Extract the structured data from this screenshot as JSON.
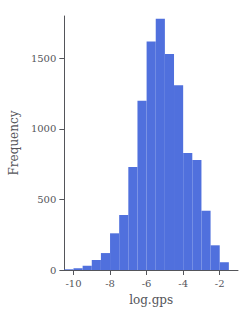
{
  "chart_data": {
    "type": "histogram",
    "xlabel": "log.gps",
    "ylabel": "Frequency",
    "bins": [
      -10.5,
      -10.0,
      -9.5,
      -9.0,
      -8.5,
      -8.0,
      -7.5,
      -7.0,
      -6.5,
      -6.0,
      -5.5,
      -5.0,
      -4.5,
      -4.0,
      -3.5,
      -3.0,
      -2.5,
      -2.0,
      -1.5
    ],
    "values": [
      5,
      12,
      30,
      70,
      120,
      260,
      390,
      730,
      1200,
      1620,
      1780,
      1530,
      1310,
      830,
      780,
      420,
      175,
      55
    ],
    "xlim": [
      -10.5,
      -1.0
    ],
    "ylim": [
      0,
      1800
    ],
    "xticks": [
      -10,
      -8,
      -6,
      -4,
      -2
    ],
    "yticks": [
      0,
      500,
      1000,
      1500
    ],
    "grid": false
  }
}
